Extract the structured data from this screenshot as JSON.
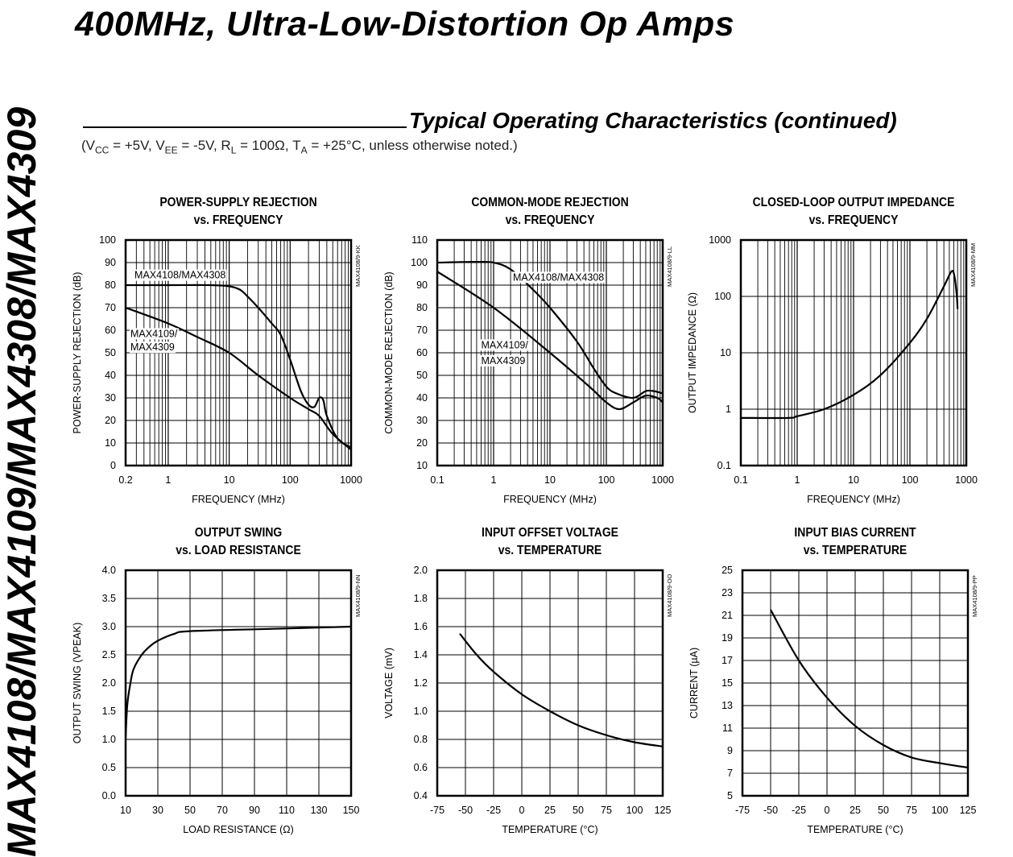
{
  "header": {
    "title": "400MHz, Ultra-Low-Distortion Op Amps",
    "side_label": "MAX4108/MAX4109/MAX4308/MAX4309"
  },
  "section": {
    "title": "Typical Operating Characteristics (continued)",
    "conditions": {
      "open": "(V",
      "vcc_sub": "CC",
      "p1": " = +5V, V",
      "vee_sub": "EE",
      "p2": " = -5V, R",
      "rl_sub": "L",
      "p3": " = 100Ω, T",
      "ta_sub": "A",
      "p4": " = +25°C, unless otherwise noted.)"
    }
  },
  "chart_data": [
    {
      "id": "MAX4108/9-KK",
      "type": "line",
      "title": [
        "POWER-SUPPLY REJECTION",
        "vs. FREQUENCY"
      ],
      "xlabel": "FREQUENCY (MHz)",
      "ylabel": "POWER-SUPPLY REJECTION (dB)",
      "xscale": "log",
      "yscale": "linear",
      "xlim": [
        0.2,
        1000
      ],
      "ylim": [
        0,
        100
      ],
      "xticks": [
        0.2,
        1,
        10,
        100,
        1000
      ],
      "yticks": [
        0,
        10,
        20,
        30,
        40,
        50,
        60,
        70,
        80,
        90,
        100
      ],
      "grid": true,
      "series": [
        {
          "name": "MAX4108/MAX4308",
          "x": [
            0.2,
            1,
            5,
            10,
            15,
            20,
            30,
            50,
            70,
            100,
            150,
            200,
            250,
            300,
            350,
            400,
            600,
            1000
          ],
          "y": [
            80,
            80,
            80,
            79.5,
            78,
            75,
            70,
            63,
            58,
            47,
            33,
            27,
            26,
            30,
            29,
            22,
            12,
            8
          ]
        },
        {
          "name": "MAX4109/MAX4309",
          "x": [
            0.2,
            1,
            3,
            10,
            30,
            100,
            200,
            300,
            500,
            1000
          ],
          "y": [
            70,
            63,
            57,
            50,
            40,
            30,
            25,
            22,
            14,
            7
          ]
        }
      ],
      "annotations": [
        {
          "text": "MAX4108/MAX4308",
          "x": 0.28,
          "y": 83
        },
        {
          "text": "MAX4109/",
          "x": 0.24,
          "y": 57
        },
        {
          "text": "MAX4309",
          "x": 0.24,
          "y": 51
        }
      ]
    },
    {
      "id": "MAX4108/9-LL",
      "type": "line",
      "title": [
        "COMMON-MODE REJECTION",
        "vs. FREQUENCY"
      ],
      "xlabel": "FREQUENCY (MHz)",
      "ylabel": "COMMON-MODE REJECTION (dB)",
      "xscale": "log",
      "yscale": "linear",
      "xlim": [
        0.1,
        1000
      ],
      "ylim": [
        10,
        110
      ],
      "xticks": [
        0.1,
        1,
        10,
        100,
        1000
      ],
      "yticks": [
        10,
        20,
        30,
        40,
        50,
        60,
        70,
        80,
        90,
        100,
        110
      ],
      "grid": true,
      "series": [
        {
          "name": "MAX4108/MAX4308",
          "x": [
            0.1,
            0.5,
            1,
            2,
            5,
            10,
            30,
            60,
            100,
            150,
            300,
            500,
            700,
            1000
          ],
          "y": [
            100,
            100.3,
            100,
            97,
            88,
            80,
            65,
            53,
            45,
            42,
            40,
            43,
            43,
            42
          ]
        },
        {
          "name": "MAX4109/MAX4309",
          "x": [
            0.1,
            1,
            10,
            50,
            100,
            170,
            300,
            500,
            800,
            1000
          ],
          "y": [
            96,
            80,
            60,
            45,
            38,
            35,
            38,
            41,
            40,
            38
          ]
        }
      ],
      "annotations": [
        {
          "text": "MAX4108/MAX4308",
          "x": 2.2,
          "y": 92
        },
        {
          "text": "MAX4109/",
          "x": 0.6,
          "y": 62
        },
        {
          "text": "MAX4309",
          "x": 0.6,
          "y": 55
        }
      ]
    },
    {
      "id": "MAX4108/9-MM",
      "type": "line",
      "title": [
        "CLOSED-LOOP OUTPUT IMPEDANCE",
        "vs. FREQUENCY"
      ],
      "xlabel": "FREQUENCY (MHz)",
      "ylabel": "OUTPUT IMPEDANCE (Ω)",
      "xscale": "log",
      "yscale": "log",
      "xlim": [
        0.1,
        1000
      ],
      "ylim": [
        0.1,
        1000
      ],
      "xticks": [
        0.1,
        1,
        10,
        100,
        1000
      ],
      "yticks": [
        0.1,
        1,
        10,
        100,
        1000
      ],
      "grid": true,
      "series": [
        {
          "name": "Output impedance",
          "x": [
            0.1,
            0.7,
            1,
            3,
            10,
            30,
            100,
            200,
            400,
            550,
            620,
            680,
            700
          ],
          "y": [
            0.7,
            0.7,
            0.75,
            1.0,
            1.8,
            4,
            15,
            40,
            150,
            280,
            220,
            100,
            60
          ]
        }
      ],
      "annotations": []
    },
    {
      "id": "MAX4108/9-NN",
      "type": "line",
      "title": [
        "OUTPUT SWING",
        "vs. LOAD RESISTANCE"
      ],
      "xlabel": "LOAD RESISTANCE (Ω)",
      "ylabel": "OUTPUT SWING (VPEAK)",
      "xscale": "linear",
      "yscale": "linear",
      "xlim": [
        10,
        150
      ],
      "ylim": [
        0,
        4
      ],
      "xticks": [
        10,
        30,
        50,
        70,
        90,
        110,
        130,
        150
      ],
      "yticks": [
        0,
        0.5,
        1.0,
        1.5,
        2.0,
        2.5,
        3.0,
        3.5,
        4.0
      ],
      "grid": true,
      "series": [
        {
          "name": "Output swing",
          "x": [
            10,
            11,
            13,
            15,
            20,
            25,
            30,
            40,
            50,
            100,
            150
          ],
          "y": [
            1.0,
            1.6,
            2.0,
            2.25,
            2.5,
            2.65,
            2.75,
            2.87,
            2.92,
            2.96,
            3.0
          ]
        }
      ],
      "annotations": []
    },
    {
      "id": "MAX4108/9-OO",
      "type": "line",
      "title": [
        "INPUT OFFSET VOLTAGE",
        "vs. TEMPERATURE"
      ],
      "xlabel": "TEMPERATURE (°C)",
      "ylabel": "VOLTAGE (mV)",
      "xscale": "linear",
      "yscale": "linear",
      "xlim": [
        -75,
        125
      ],
      "ylim": [
        0.4,
        2.0
      ],
      "xticks": [
        -75,
        -50,
        -25,
        0,
        25,
        50,
        75,
        100,
        125
      ],
      "yticks": [
        0.4,
        0.6,
        0.8,
        1.0,
        1.2,
        1.4,
        1.6,
        1.8,
        2.0
      ],
      "grid": true,
      "series": [
        {
          "name": "Offset voltage",
          "x": [
            -55,
            -40,
            -25,
            0,
            25,
            50,
            75,
            100,
            125
          ],
          "y": [
            1.55,
            1.4,
            1.28,
            1.12,
            1.0,
            0.9,
            0.83,
            0.78,
            0.75
          ]
        }
      ],
      "annotations": []
    },
    {
      "id": "MAX4108/9-PP",
      "type": "line",
      "title": [
        "INPUT BIAS CURRENT",
        "vs. TEMPERATURE"
      ],
      "xlabel": "TEMPERATURE (°C)",
      "ylabel": "CURRENT (µA)",
      "xscale": "linear",
      "yscale": "linear",
      "xlim": [
        -75,
        125
      ],
      "ylim": [
        5,
        25
      ],
      "xticks": [
        -75,
        -50,
        -25,
        0,
        25,
        50,
        75,
        100,
        125
      ],
      "yticks": [
        5,
        7,
        9,
        11,
        13,
        15,
        17,
        19,
        21,
        23,
        25
      ],
      "grid": true,
      "series": [
        {
          "name": "Bias current",
          "x": [
            -50,
            -25,
            0,
            25,
            50,
            75,
            100,
            125
          ],
          "y": [
            21.5,
            17,
            13.7,
            11.2,
            9.5,
            8.4,
            7.9,
            7.5
          ]
        }
      ],
      "annotations": []
    }
  ]
}
